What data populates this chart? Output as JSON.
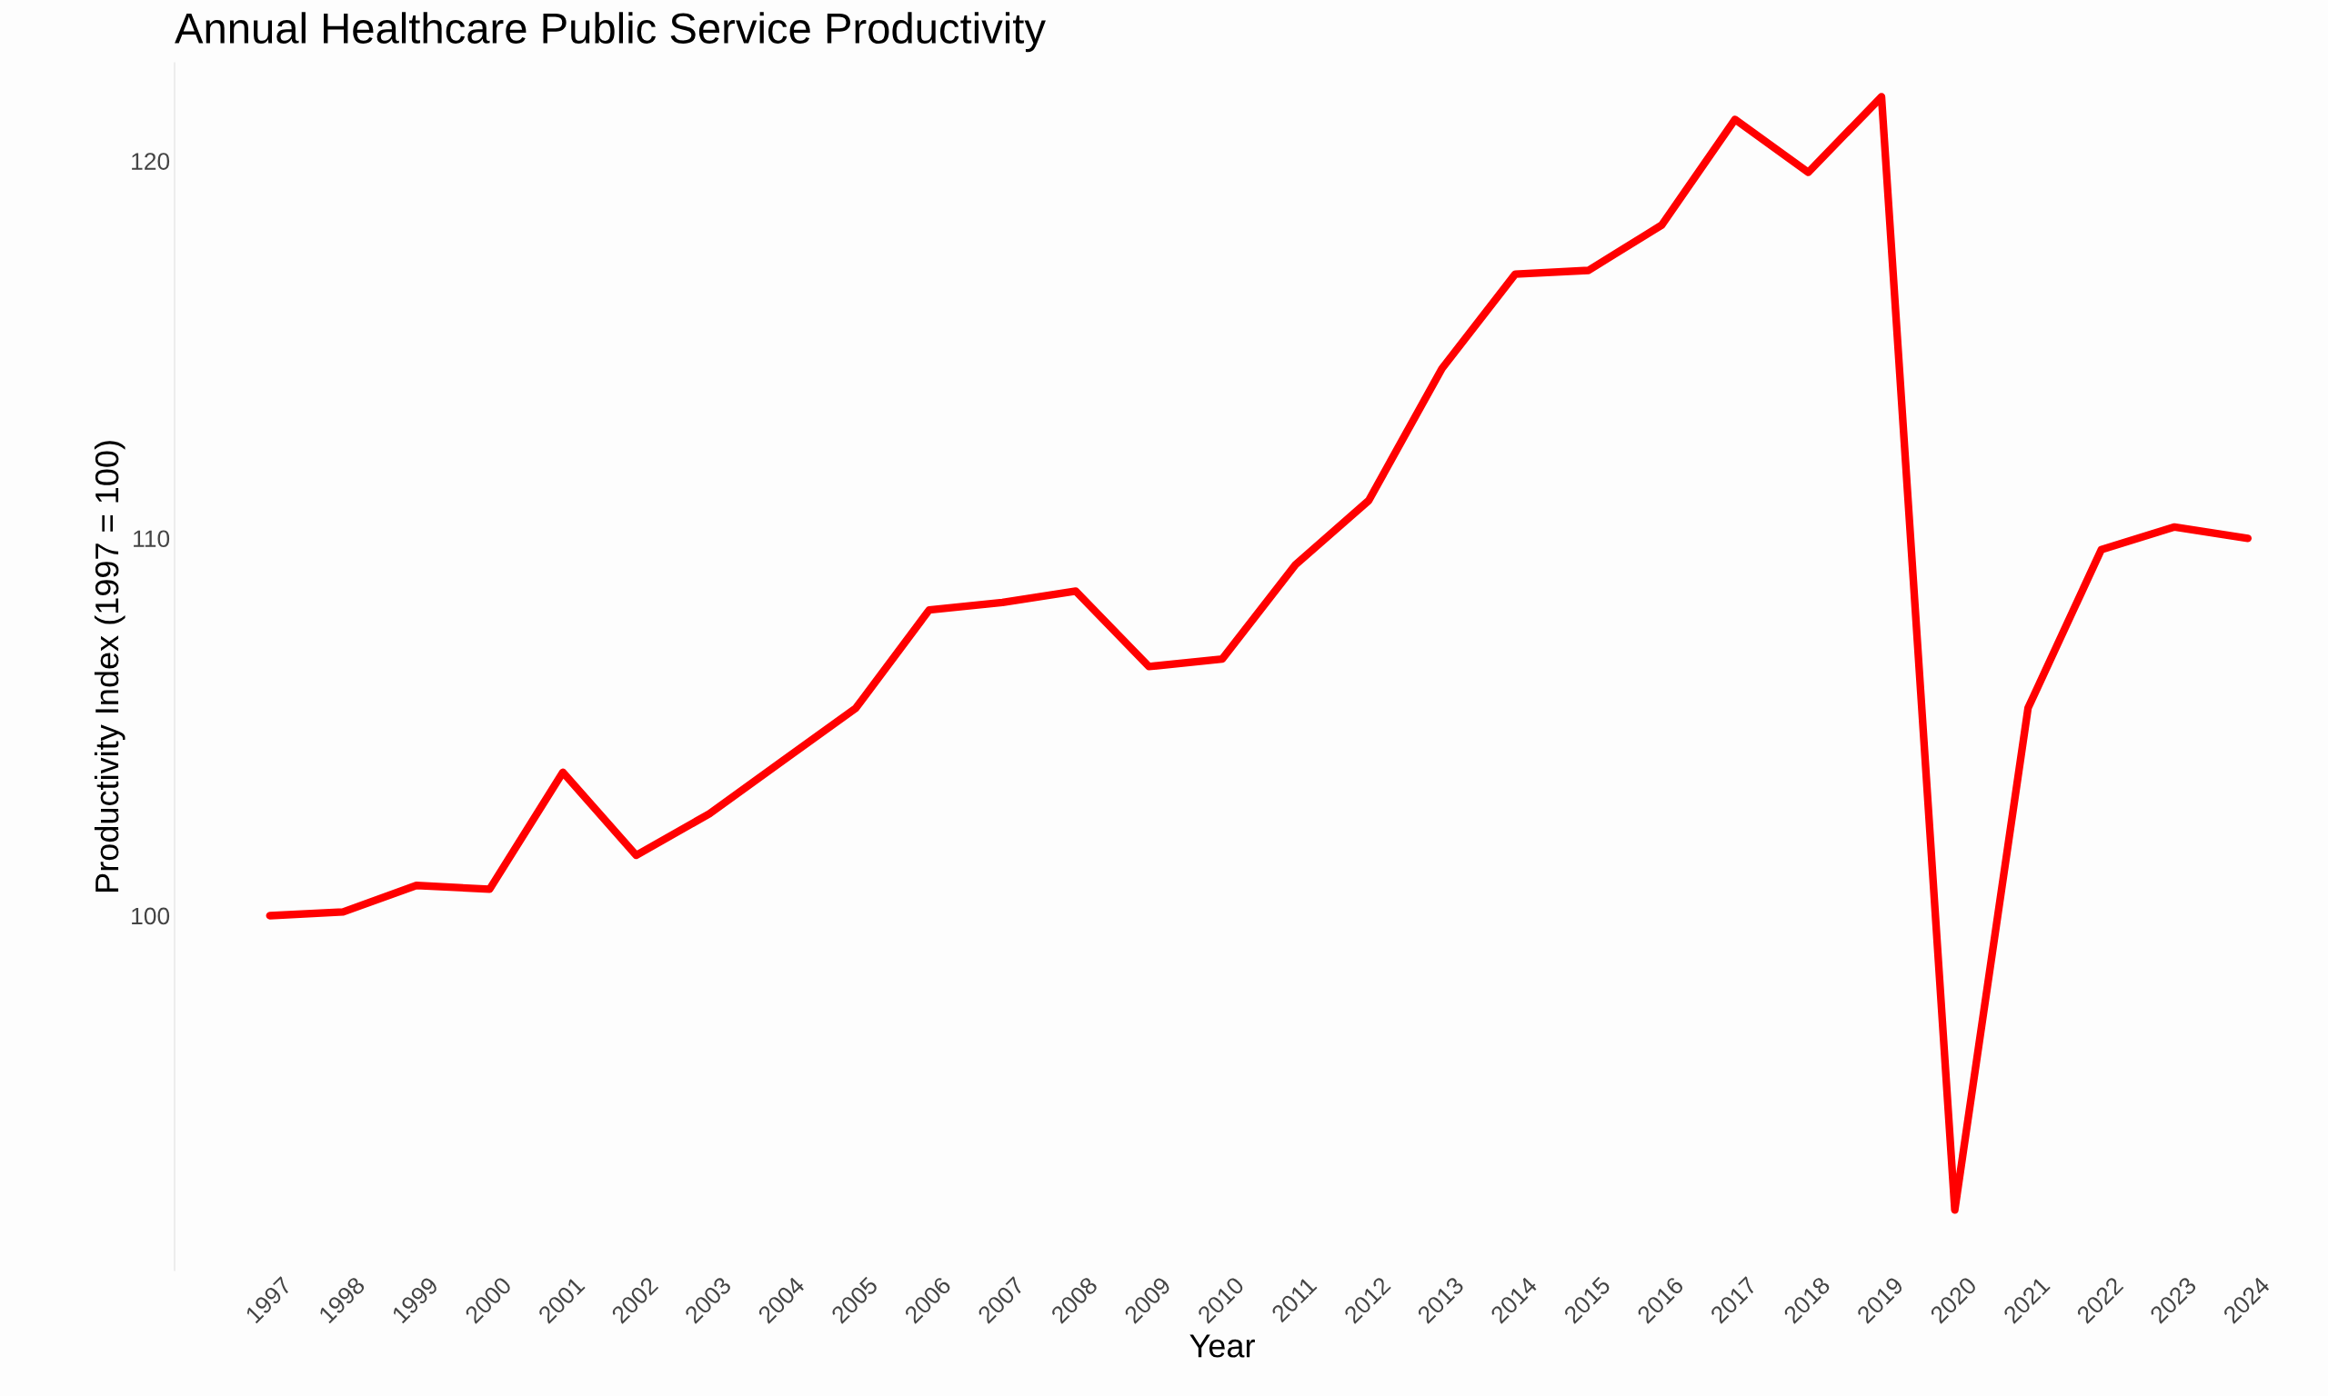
{
  "chart_data": {
    "type": "line",
    "title": "Annual Healthcare Public Service Productivity",
    "xlabel": "Year",
    "ylabel": "Productivity Index (1997 = 100)",
    "categories": [
      "1997",
      "1998",
      "1999",
      "2000",
      "2001",
      "2002",
      "2003",
      "2004",
      "2005",
      "2006",
      "2007",
      "2008",
      "2009",
      "2010",
      "2011",
      "2012",
      "2013",
      "2014",
      "2015",
      "2016",
      "2017",
      "2018",
      "2019",
      "2020",
      "2021",
      "2022",
      "2023",
      "2024"
    ],
    "series": [
      {
        "color": "#ff0000",
        "values": [
          100.0,
          100.1,
          100.8,
          100.7,
          103.8,
          101.6,
          102.7,
          104.1,
          105.5,
          108.1,
          108.3,
          108.6,
          106.6,
          106.8,
          109.3,
          111.0,
          114.5,
          117.0,
          117.1,
          118.3,
          121.1,
          119.7,
          121.7,
          92.2,
          105.5,
          109.7,
          110.3,
          110.0
        ]
      }
    ],
    "ylim": [
      90.6,
      122.6
    ],
    "yticks": [
      100,
      110,
      120
    ],
    "grid": false,
    "legend": false,
    "marker": "none",
    "line_style": "solid"
  }
}
